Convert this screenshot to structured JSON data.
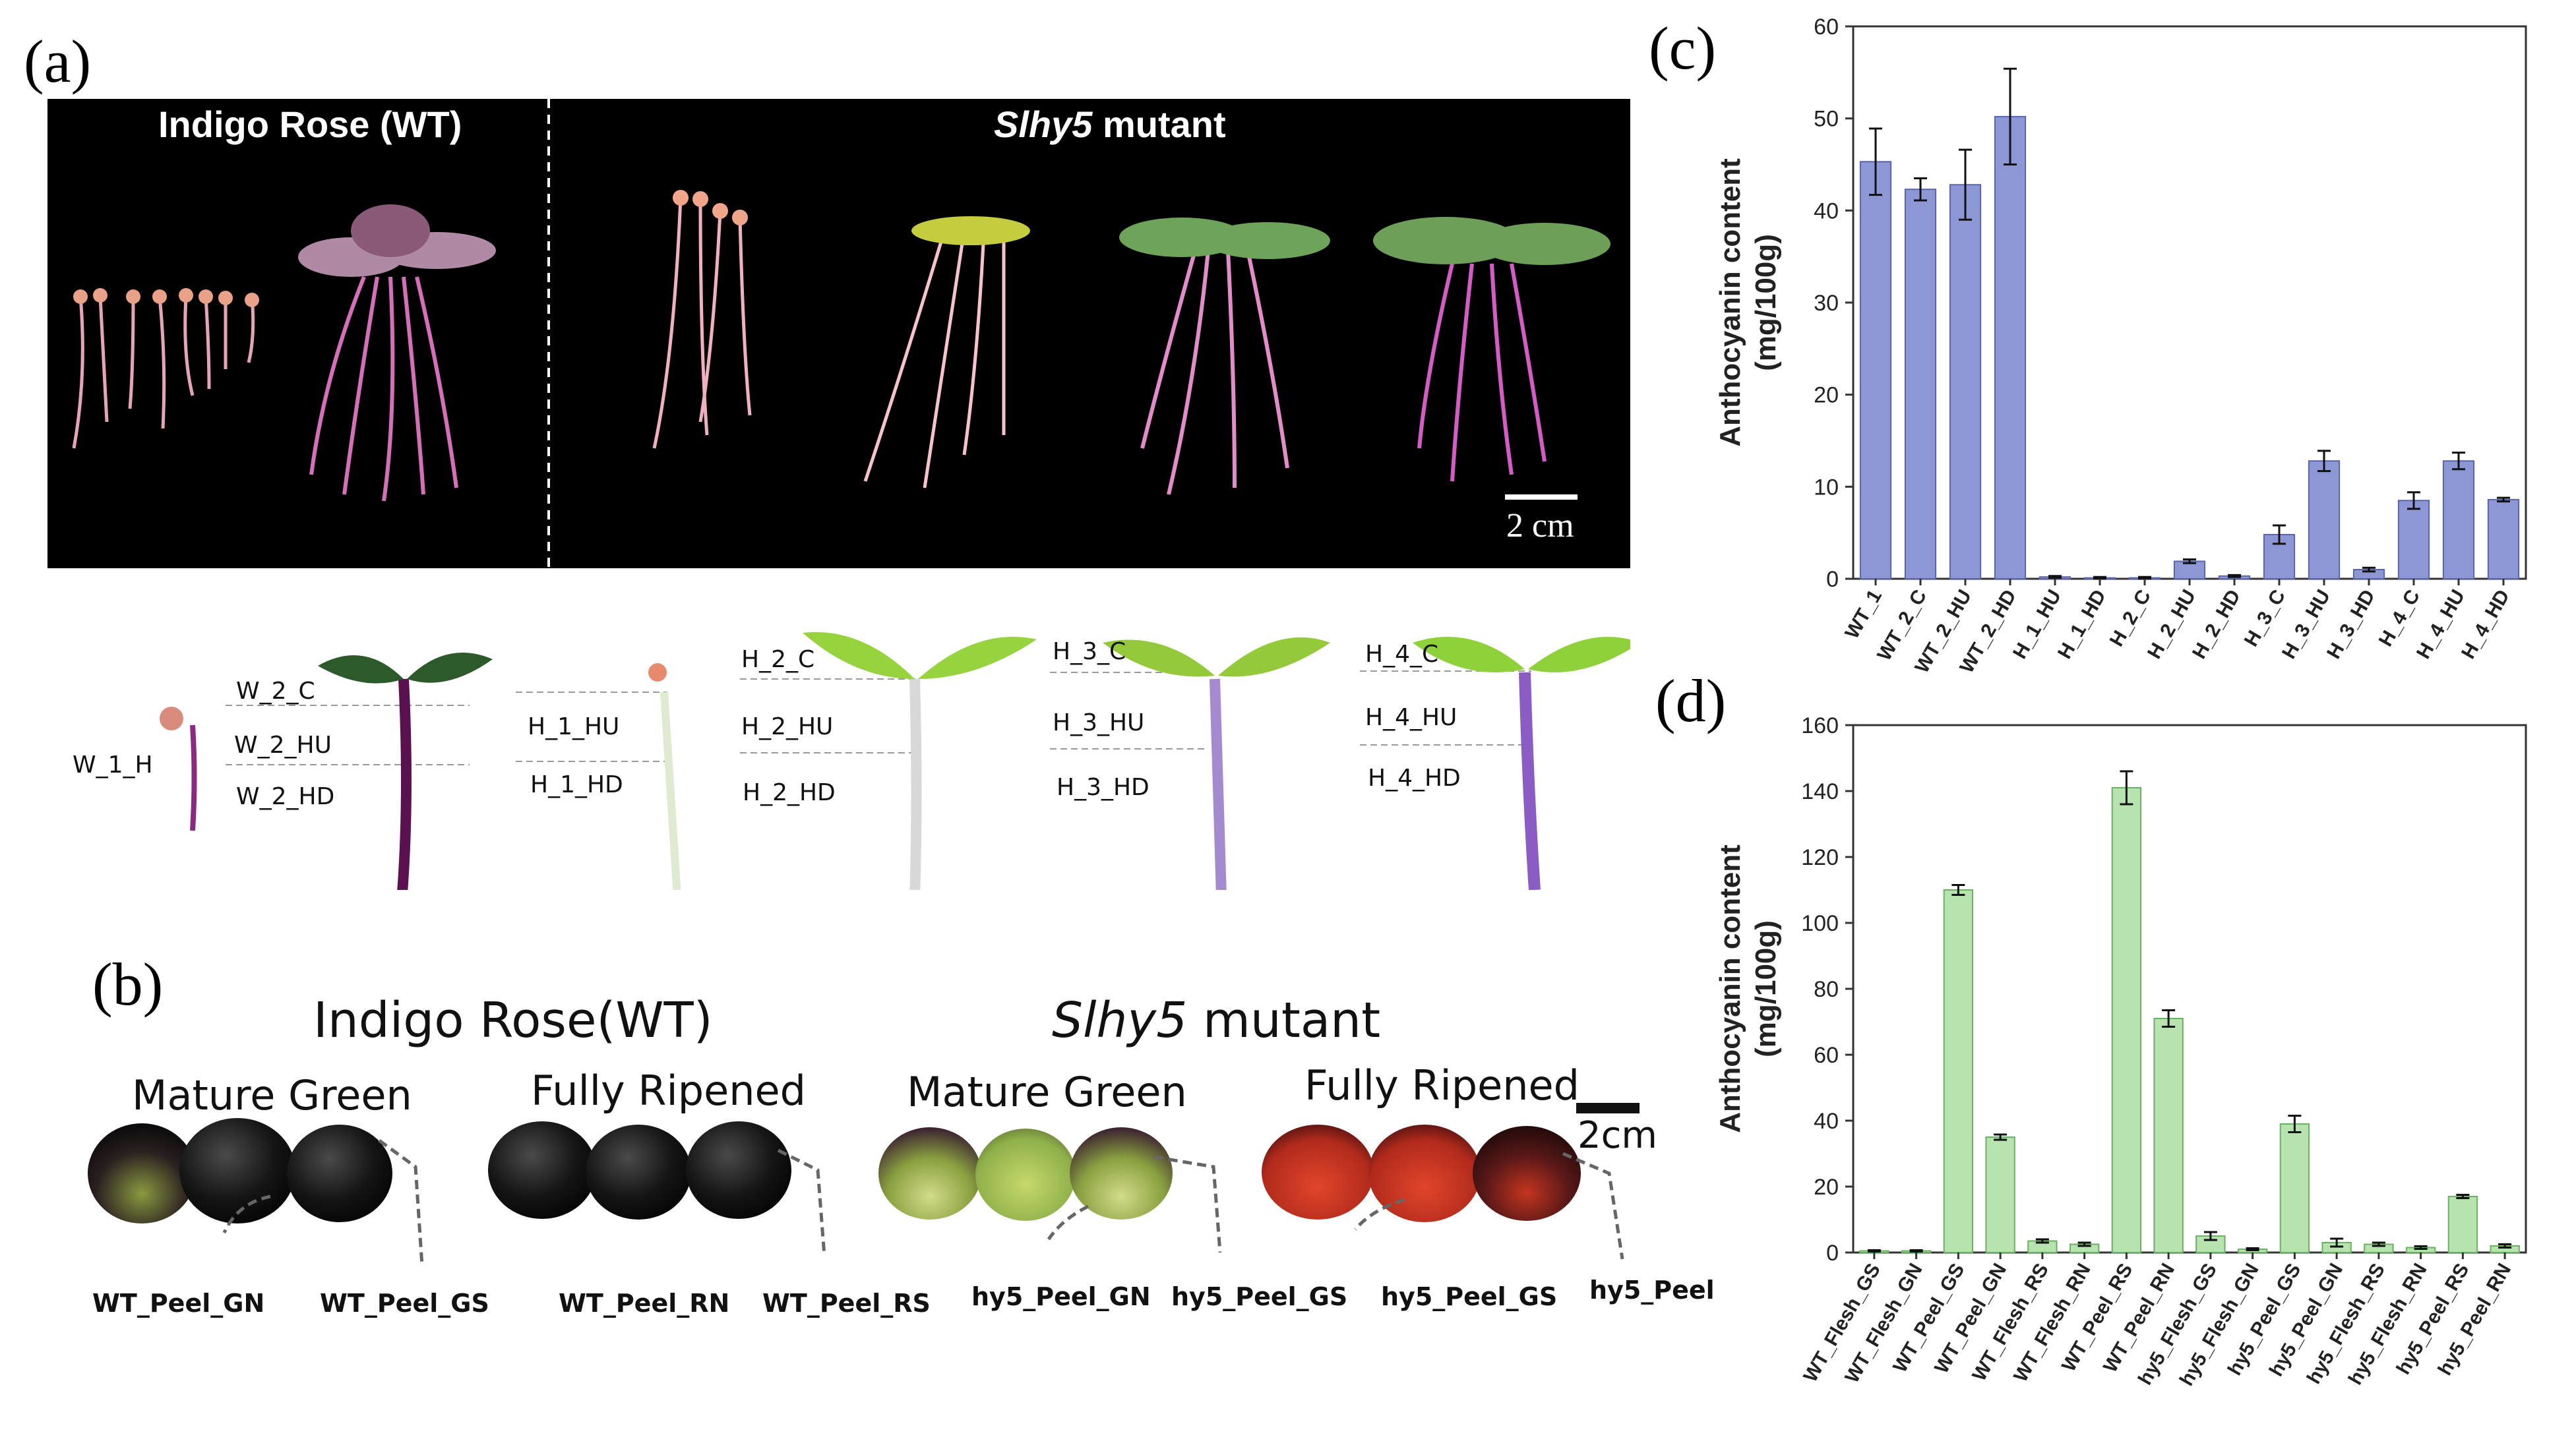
{
  "panel_labels": {
    "a": "(a)",
    "b": "(b)",
    "c": "(c)",
    "d": "(d)"
  },
  "panel_a": {
    "wt_title": "Indigo Rose (WT)",
    "mutant_gene": "Slhy5",
    "mutant_suffix": " mutant",
    "scale_bar": "2 cm",
    "segment_labels": {
      "w1h": "W_1_H",
      "w2c": "W_2_C",
      "w2hu": "W_2_HU",
      "w2hd": "W_2_HD",
      "h1hu": "H_1_HU",
      "h1hd": "H_1_HD",
      "h2c": "H_2_C",
      "h2hu": "H_2_HU",
      "h2hd": "H_2_HD",
      "h3c": "H_3_C",
      "h3hu": "H_3_HU",
      "h3hd": "H_3_HD",
      "h4c": "H_4_C",
      "h4hu": "H_4_HU",
      "h4hd": "H_4_HD"
    }
  },
  "panel_b": {
    "wt_heading": "Indigo Rose(WT)",
    "mutant_gene": "Slhy5",
    "mutant_suffix": " mutant",
    "stage_mg_wt": "Mature Green",
    "stage_fr_wt": "Fully Ripened",
    "stage_mg_mut": "Mature Green",
    "stage_fr_mut": "Fully Ripened",
    "scale_bar": "2cm",
    "fruit_labels": [
      "WT_Peel_GN",
      "WT_Peel_GS",
      "WT_Peel_RN",
      "WT_Peel_RS",
      "hy5_Peel_GN",
      "hy5_Peel_GS",
      "hy5_Peel_GS",
      "hy5_Peel"
    ]
  },
  "colors": {
    "bar_c": "#8e97d6",
    "bar_c_edge": "#5a64a8",
    "bar_d": "#b7e3ae",
    "bar_d_edge": "#6bb163",
    "photo_bg": "#000000"
  },
  "chart_data": [
    {
      "id": "c",
      "type": "bar",
      "ylabel_line1": "Anthocyanin content",
      "ylabel_line2": "(mg/100g)",
      "ylim": [
        0,
        60
      ],
      "yticks": [
        0,
        10,
        20,
        30,
        40,
        50,
        60
      ],
      "categories": [
        "WT_1",
        "WT_2_C",
        "WT_2_HU",
        "WT_2_HD",
        "H_1_HU",
        "H_1_HD",
        "H_2_C",
        "H_2_HU",
        "H_2_HD",
        "H_3_C",
        "H_3_HU",
        "H_3_HD",
        "H_4_C",
        "H_4_HU",
        "H_4_HD"
      ],
      "values": [
        45.3,
        42.3,
        42.8,
        50.2,
        0.2,
        0.1,
        0.1,
        1.9,
        0.3,
        4.8,
        12.8,
        1.0,
        8.5,
        12.8,
        8.6
      ],
      "errors": [
        3.6,
        1.2,
        3.8,
        5.2,
        0.1,
        0.1,
        0.1,
        0.2,
        0.1,
        1.0,
        1.1,
        0.2,
        0.9,
        0.9,
        0.2
      ]
    },
    {
      "id": "d",
      "type": "bar",
      "ylabel_line1": "Anthocyanin content",
      "ylabel_line2": "(mg/100g)",
      "ylim": [
        0,
        160
      ],
      "yticks": [
        0,
        20,
        40,
        60,
        80,
        100,
        120,
        140,
        160
      ],
      "categories": [
        "WT_Flesh_GS",
        "WT_Flesh_GN",
        "WT_Peel_GS",
        "WT_Peel_GN",
        "WT_Flesh_RS",
        "WT_Flesh_RN",
        "WT_Peel_RS",
        "WT_Peel_RN",
        "hy5_Flesh_GS",
        "hy5_Flesh_GN",
        "hy5_Peel_GS",
        "hy5_Peel_GN",
        "hy5_Flesh_RS",
        "hy5_Flesh_RN",
        "hy5_Peel_RS",
        "hy5_Peel_RN"
      ],
      "values": [
        0.5,
        0.5,
        110,
        35,
        3.5,
        2.5,
        141,
        71,
        5,
        1,
        39,
        3,
        2.5,
        1.5,
        17,
        2
      ],
      "errors": [
        0.2,
        0.2,
        1.5,
        0.8,
        0.5,
        0.5,
        5,
        2.5,
        1.2,
        0.3,
        2.5,
        1.2,
        0.5,
        0.4,
        0.5,
        0.5
      ]
    }
  ]
}
